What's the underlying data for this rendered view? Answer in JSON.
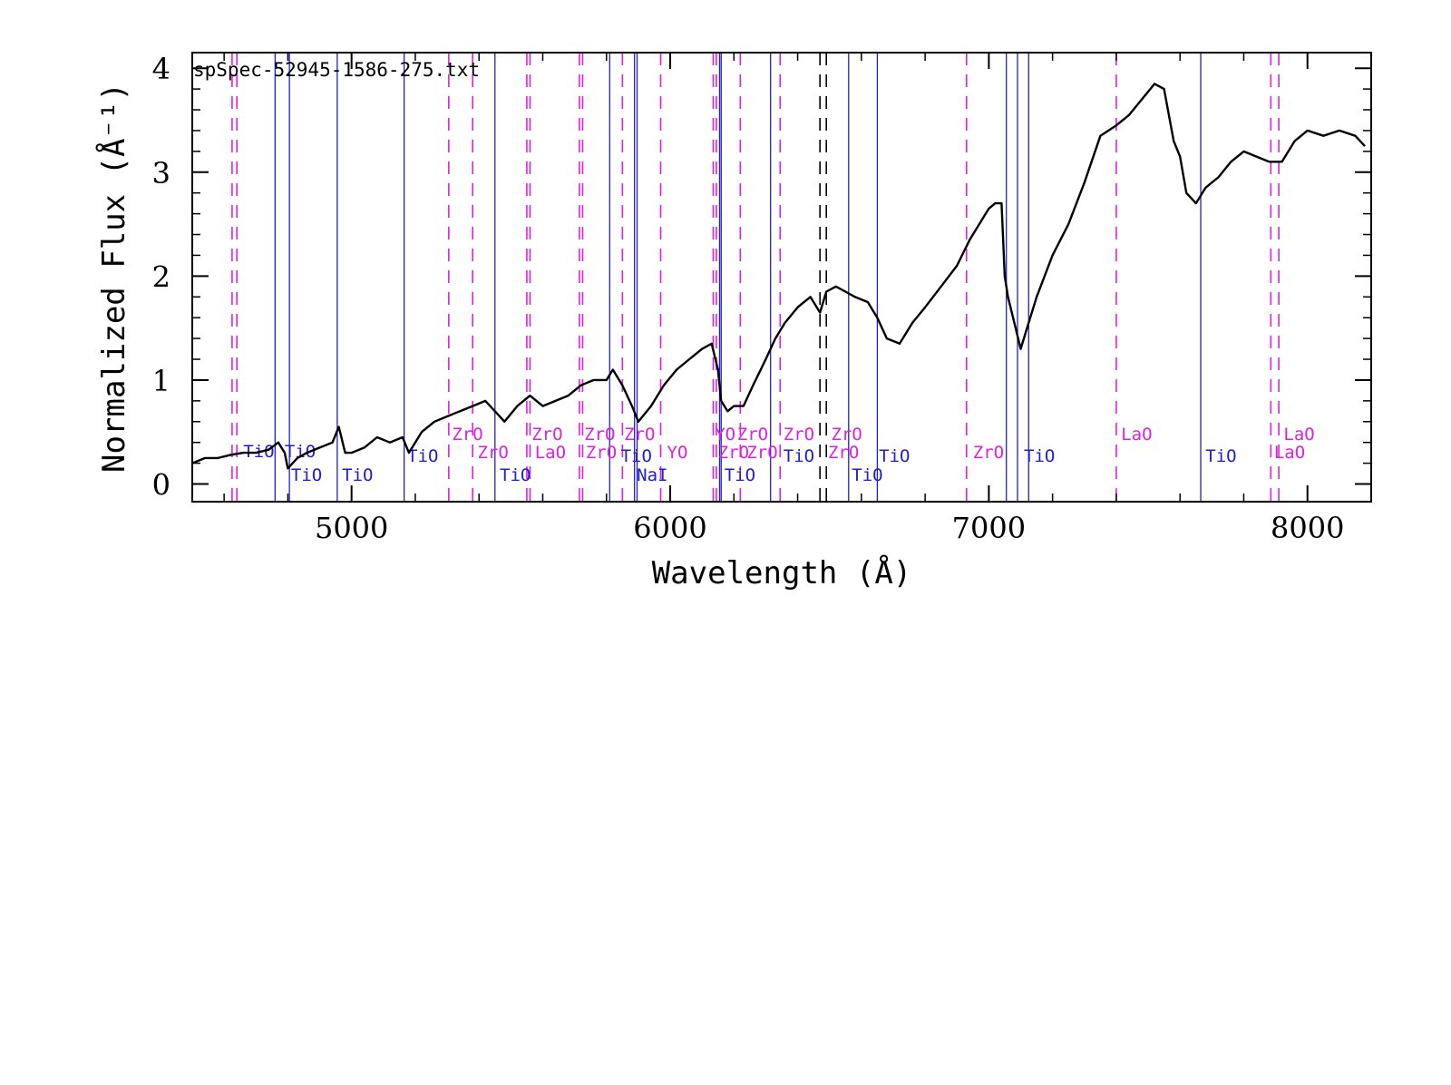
{
  "chart_data": {
    "type": "line",
    "title": "spSpec-52945-1586-275.txt",
    "xlabel": "Wavelength (Å)",
    "ylabel": "Normalized Flux  (Å⁻¹)",
    "xlim": [
      4500,
      8200
    ],
    "ylim": [
      -0.17,
      4.15
    ],
    "x_ticks": [
      5000,
      6000,
      7000,
      8000
    ],
    "y_ticks": [
      0,
      1,
      2,
      3,
      4
    ],
    "x_tick_labels": [
      "5000",
      "6000",
      "7000",
      "8000"
    ],
    "y_tick_labels": [
      "0",
      "1",
      "2",
      "3",
      "4"
    ],
    "grid": false,
    "colors": {
      "spectrum": "#000000",
      "ZrO": "#e020e0",
      "TiO": "#2020c8",
      "LaO": "#e020e0",
      "YO": "#e020e0",
      "NaI": "#2020c8",
      "dark": "#000000"
    },
    "series": [
      {
        "x": [
          4500,
          4540,
          4580,
          4620,
          4660,
          4700,
          4740,
          4770,
          4790,
          4800,
          4830,
          4860,
          4900,
          4940,
          4960,
          4980,
          5000,
          5040,
          5080,
          5120,
          5160,
          5180,
          5220,
          5260,
          5300,
          5340,
          5380,
          5420,
          5450,
          5480,
          5520,
          5560,
          5600,
          5640,
          5680,
          5720,
          5760,
          5800,
          5820,
          5850,
          5880,
          5900,
          5940,
          5980,
          6020,
          6060,
          6100,
          6130,
          6150,
          6160,
          6180,
          6200,
          6230,
          6260,
          6300,
          6330,
          6360,
          6400,
          6440,
          6470,
          6490,
          6520,
          6550,
          6580,
          6620,
          6650,
          6680,
          6720,
          6760,
          6800,
          6850,
          6900,
          6940,
          6980,
          7000,
          7020,
          7040,
          7050,
          7060,
          7080,
          7100,
          7120,
          7150,
          7200,
          7250,
          7300,
          7350,
          7400,
          7440,
          7480,
          7520,
          7550,
          7580,
          7600,
          7620,
          7650,
          7680,
          7700,
          7720,
          7760,
          7800,
          7840,
          7880,
          7920,
          7960,
          8000,
          8050,
          8100,
          8150,
          8180
        ],
        "y": [
          0.2,
          0.25,
          0.25,
          0.28,
          0.3,
          0.3,
          0.33,
          0.4,
          0.3,
          0.15,
          0.25,
          0.3,
          0.35,
          0.4,
          0.55,
          0.3,
          0.3,
          0.35,
          0.45,
          0.4,
          0.45,
          0.3,
          0.5,
          0.6,
          0.65,
          0.7,
          0.75,
          0.8,
          0.7,
          0.6,
          0.75,
          0.85,
          0.75,
          0.8,
          0.85,
          0.95,
          1.0,
          1.0,
          1.1,
          0.95,
          0.75,
          0.6,
          0.75,
          0.95,
          1.1,
          1.2,
          1.3,
          1.35,
          1.1,
          0.8,
          0.7,
          0.75,
          0.75,
          0.95,
          1.2,
          1.4,
          1.55,
          1.7,
          1.8,
          1.65,
          1.85,
          1.9,
          1.85,
          1.8,
          1.75,
          1.6,
          1.4,
          1.35,
          1.55,
          1.7,
          1.9,
          2.1,
          2.35,
          2.55,
          2.65,
          2.7,
          2.7,
          2.0,
          1.8,
          1.55,
          1.3,
          1.5,
          1.8,
          2.2,
          2.5,
          2.9,
          3.35,
          3.45,
          3.55,
          3.7,
          3.85,
          3.8,
          3.3,
          3.15,
          2.8,
          2.7,
          2.85,
          2.9,
          2.95,
          3.1,
          3.2,
          3.15,
          3.1,
          3.1,
          3.3,
          3.4,
          3.35,
          3.4,
          3.35,
          3.25
        ]
      }
    ],
    "line_labels": [
      {
        "text": "TiO",
        "color": "#2020c8"
      },
      {
        "text": "TiO",
        "color": "#2020c8"
      },
      {
        "text": "TiO",
        "color": "#2020c8"
      },
      {
        "text": "TiO",
        "color": "#2020c8"
      },
      {
        "text": "TiO",
        "color": "#2020c8"
      },
      {
        "text": "ZrO",
        "color": "#e020e0"
      },
      {
        "text": "ZrO",
        "color": "#e020e0"
      },
      {
        "text": "TiO",
        "color": "#2020c8"
      },
      {
        "text": "ZrO",
        "color": "#e020e0"
      },
      {
        "text": "LaO",
        "color": "#e020e0"
      },
      {
        "text": "ZrO",
        "color": "#e020e0"
      },
      {
        "text": "ZrO",
        "color": "#e020e0"
      },
      {
        "text": "ZrO",
        "color": "#e020e0"
      },
      {
        "text": "TiO",
        "color": "#2020c8"
      },
      {
        "text": "NaI",
        "color": "#2020c8"
      },
      {
        "text": "YO",
        "color": "#e020e0"
      },
      {
        "text": "YO",
        "color": "#e020e0"
      },
      {
        "text": "ZrO",
        "color": "#e020e0"
      },
      {
        "text": "ZrO",
        "color": "#e020e0"
      },
      {
        "text": "TiO",
        "color": "#2020c8"
      },
      {
        "text": "ZrO",
        "color": "#e020e0"
      },
      {
        "text": "ZrO",
        "color": "#e020e0"
      },
      {
        "text": "TiO",
        "color": "#2020c8"
      },
      {
        "text": "ZrO",
        "color": "#e020e0"
      },
      {
        "text": "ZrO",
        "color": "#e020e0"
      },
      {
        "text": "TiO",
        "color": "#2020c8"
      },
      {
        "text": "TiO",
        "color": "#2020c8"
      },
      {
        "text": "ZrO",
        "color": "#e020e0"
      },
      {
        "text": "TiO",
        "color": "#2020c8"
      },
      {
        "text": "LaO",
        "color": "#e020e0"
      },
      {
        "text": "TiO",
        "color": "#2020c8"
      },
      {
        "text": "LaO",
        "color": "#e020e0"
      },
      {
        "text": "LaO",
        "color": "#e020e0"
      }
    ]
  }
}
